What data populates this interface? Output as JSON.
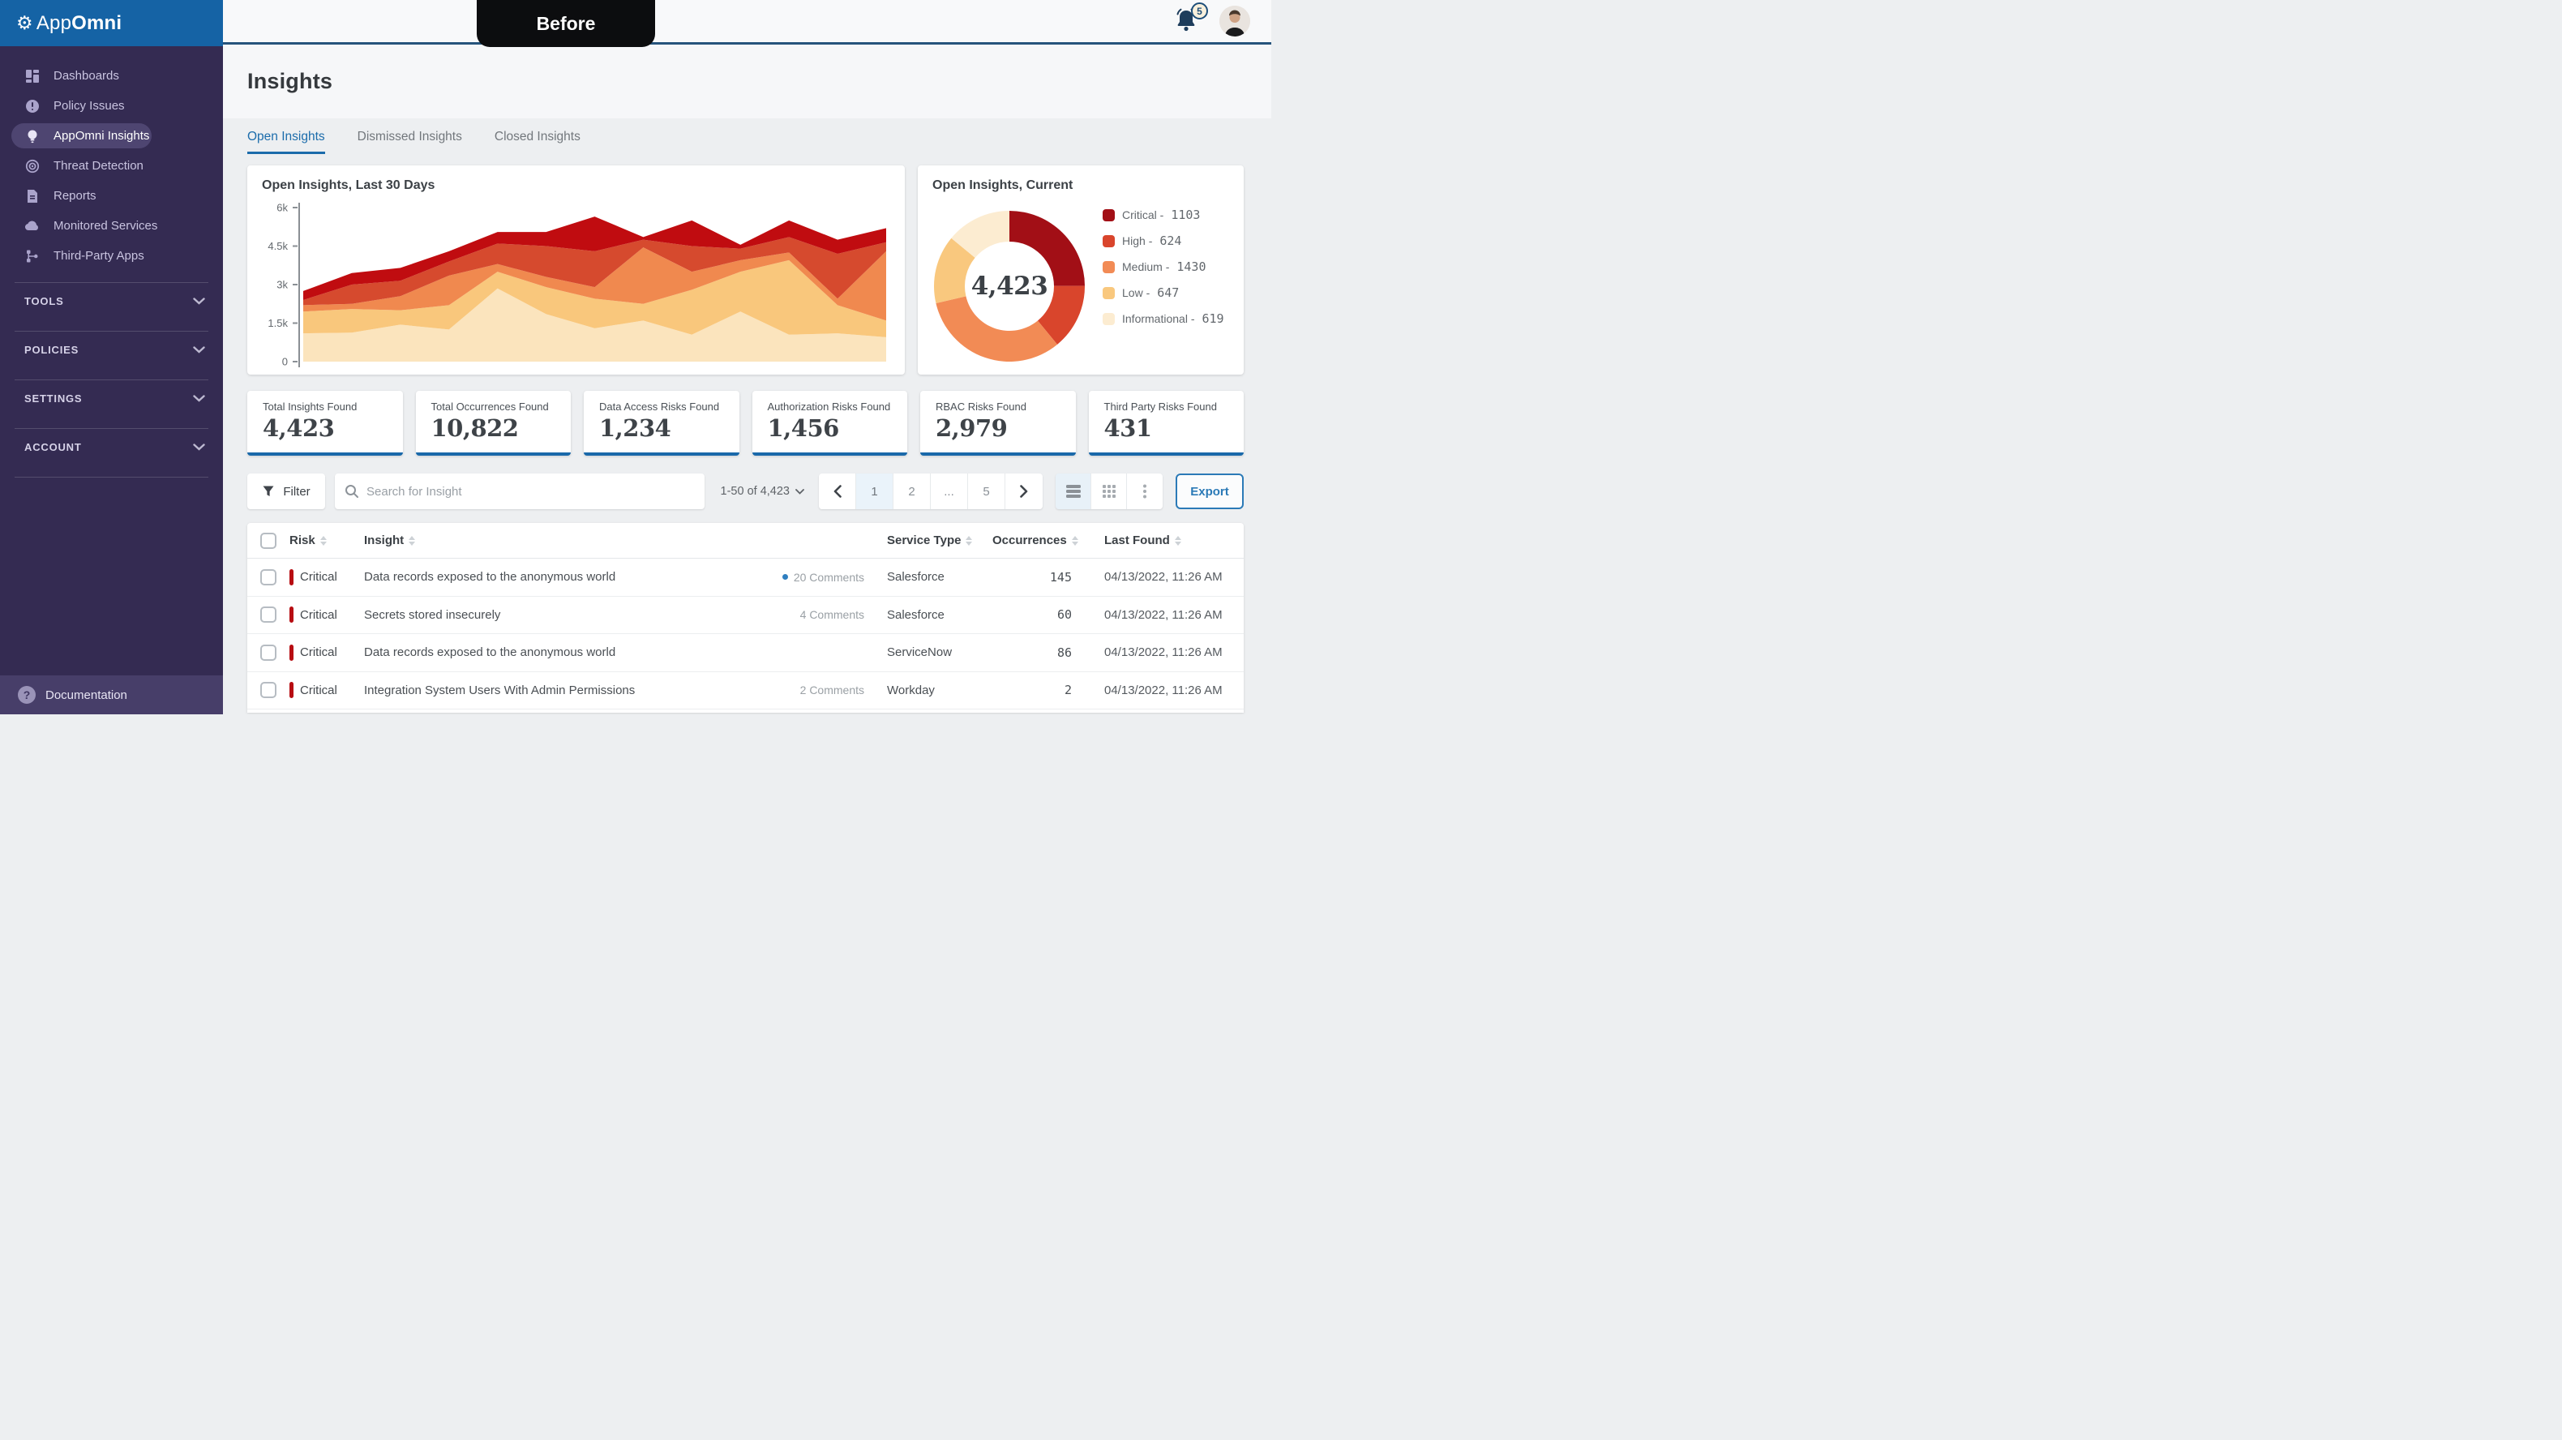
{
  "colors": {
    "brand_blue": "#1563a5",
    "accent_blue": "#1b6cab",
    "topbar_line": "#26547c",
    "sidebar_bg": "#342b52",
    "sidebar_active_pill": "#4e4571",
    "critical_red": "#b70d12",
    "stat_card_border": "#1a69aa"
  },
  "sidebar": {
    "brand_prefix": "App",
    "brand_suffix": "Omni",
    "items": [
      {
        "label": "Dashboards",
        "icon": "dashboards-icon",
        "active": false
      },
      {
        "label": "Policy Issues",
        "icon": "policy-issues-icon",
        "active": false
      },
      {
        "label": "AppOmni Insights",
        "icon": "insights-bulb-icon",
        "active": true
      },
      {
        "label": "Threat Detection",
        "icon": "threat-detection-icon",
        "active": false
      },
      {
        "label": "Reports",
        "icon": "reports-icon",
        "active": false
      },
      {
        "label": "Monitored Services",
        "icon": "cloud-icon",
        "active": false
      },
      {
        "label": "Third-Party Apps",
        "icon": "third-party-icon",
        "active": false
      }
    ],
    "sections": [
      {
        "label": "TOOLS"
      },
      {
        "label": "POLICIES"
      },
      {
        "label": "SETTINGS"
      },
      {
        "label": "ACCOUNT"
      }
    ],
    "footer_label": "Documentation"
  },
  "topbar": {
    "mode_badge": "Before",
    "notification_count": "5"
  },
  "page": {
    "title": "Insights",
    "tabs": [
      {
        "label": "Open Insights",
        "active": true
      },
      {
        "label": "Dismissed Insights",
        "active": false
      },
      {
        "label": "Closed Insights",
        "active": false
      }
    ]
  },
  "chart_data": [
    {
      "type": "area",
      "stacked": true,
      "title": "Open Insights, Last 30 Days",
      "xlabel": "",
      "ylabel": "",
      "ylim": [
        0,
        6000
      ],
      "yticks": [
        "0",
        "1.5k",
        "3k",
        "4.5k",
        "6k"
      ],
      "grid": false,
      "legend_position": "none",
      "x": [
        1,
        2,
        3,
        4,
        5,
        6,
        7,
        8,
        9,
        10,
        11,
        12,
        13
      ],
      "series": [
        {
          "name": "Informational",
          "color": "#fbe4bd",
          "values": [
            1100,
            1130,
            1440,
            1250,
            2850,
            1850,
            1300,
            1600,
            1050,
            1950,
            1050,
            1100,
            950
          ]
        },
        {
          "name": "Low",
          "color": "#f9c77c",
          "values": [
            850,
            920,
            560,
            950,
            650,
            1050,
            1150,
            650,
            1750,
            1550,
            2900,
            1100,
            650
          ]
        },
        {
          "name": "Medium",
          "color": "#f0894f",
          "values": [
            250,
            200,
            550,
            1150,
            300,
            400,
            450,
            2200,
            700,
            450,
            300,
            250,
            2700
          ]
        },
        {
          "name": "High",
          "color": "#d64a2e",
          "values": [
            200,
            750,
            600,
            550,
            800,
            1200,
            1400,
            300,
            1000,
            450,
            600,
            1750,
            350
          ]
        },
        {
          "name": "Critical",
          "color": "#c00c10",
          "values": [
            350,
            450,
            500,
            400,
            450,
            550,
            1350,
            100,
            1000,
            150,
            650,
            550,
            550
          ]
        }
      ]
    },
    {
      "type": "pie",
      "donut": true,
      "title": "Open Insights, Current",
      "center_label": "4,423",
      "total": 4423,
      "legend_position": "right",
      "legend_separator": "-",
      "slices": [
        {
          "label": "Critical",
          "value": 1103,
          "value_str": "1103",
          "color": "#a20f16"
        },
        {
          "label": "High",
          "value": 624,
          "value_str": "624",
          "color": "#d9452c"
        },
        {
          "label": "Medium",
          "value": 1430,
          "value_str": "1430",
          "color": "#f28b55"
        },
        {
          "label": "Low",
          "value": 647,
          "value_str": "647",
          "color": "#f9c87e"
        },
        {
          "label": "Informational",
          "value": 619,
          "value_str": "619",
          "color": "#fcecd1"
        }
      ]
    }
  ],
  "stats": [
    {
      "label": "Total Insights Found",
      "value": "4,423"
    },
    {
      "label": "Total Occurrences Found",
      "value": "10,822"
    },
    {
      "label": "Data Access Risks Found",
      "value": "1,234"
    },
    {
      "label": "Authorization Risks Found",
      "value": "1,456"
    },
    {
      "label": "RBAC Risks Found",
      "value": "2,979"
    },
    {
      "label": "Third Party Risks Found",
      "value": "431"
    }
  ],
  "toolbar": {
    "filter_label": "Filter",
    "search_placeholder": "Search for Insight",
    "range_label": "1-50 of 4,423",
    "pages": [
      "1",
      "2",
      "...",
      "5"
    ],
    "active_page": "1",
    "export_label": "Export"
  },
  "table": {
    "columns": [
      {
        "label": "Risk"
      },
      {
        "label": "Insight"
      },
      {
        "label": "Service Type"
      },
      {
        "label": "Occurrences"
      },
      {
        "label": "Last Found"
      }
    ],
    "rows": [
      {
        "risk": "Critical",
        "insight": "Data records exposed to the anonymous world",
        "comments": "20 Comments",
        "unread": true,
        "service_type": "Salesforce",
        "occurrences": "145",
        "last_found": "04/13/2022, 11:26 AM"
      },
      {
        "risk": "Critical",
        "insight": "Secrets stored insecurely",
        "comments": "4 Comments",
        "unread": false,
        "service_type": "Salesforce",
        "occurrences": "60",
        "last_found": "04/13/2022, 11:26 AM"
      },
      {
        "risk": "Critical",
        "insight": "Data records exposed to the anonymous world",
        "comments": "",
        "unread": false,
        "service_type": "ServiceNow",
        "occurrences": "86",
        "last_found": "04/13/2022, 11:26 AM"
      },
      {
        "risk": "Critical",
        "insight": "Integration System Users With Admin Permissions",
        "comments": "2 Comments",
        "unread": false,
        "service_type": "Workday",
        "occurrences": "2",
        "last_found": "04/13/2022, 11:26 AM"
      }
    ]
  }
}
